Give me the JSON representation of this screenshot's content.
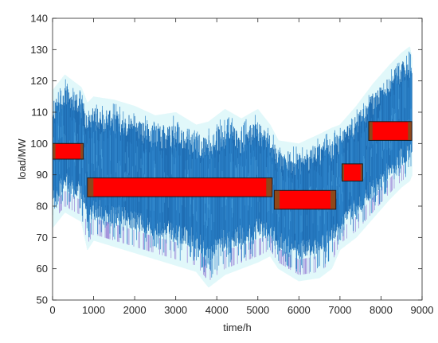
{
  "chart_data": {
    "type": "line",
    "xlabel": "time/h",
    "ylabel": "load/MW",
    "xlim": [
      0,
      9000
    ],
    "ylim": [
      50,
      140
    ],
    "xticks": [
      0,
      1000,
      2000,
      3000,
      4000,
      5000,
      6000,
      7000,
      8000,
      9000
    ],
    "yticks": [
      50,
      60,
      70,
      80,
      90,
      100,
      110,
      120,
      130,
      140
    ],
    "grid": false,
    "legend": "none",
    "series": [
      {
        "kind": "hourly-load-band",
        "x_range": [
          0,
          8760
        ],
        "envelope": [
          {
            "x": 0,
            "min": 75,
            "max": 116
          },
          {
            "x": 300,
            "min": 80,
            "max": 121
          },
          {
            "x": 700,
            "min": 77,
            "max": 117
          },
          {
            "x": 850,
            "min": 68,
            "max": 112
          },
          {
            "x": 1000,
            "min": 71,
            "max": 114
          },
          {
            "x": 1500,
            "min": 69,
            "max": 113
          },
          {
            "x": 2000,
            "min": 67,
            "max": 111
          },
          {
            "x": 2500,
            "min": 65,
            "max": 108
          },
          {
            "x": 3000,
            "min": 63,
            "max": 109
          },
          {
            "x": 3500,
            "min": 61,
            "max": 105
          },
          {
            "x": 3800,
            "min": 56,
            "max": 106
          },
          {
            "x": 4200,
            "min": 60,
            "max": 110
          },
          {
            "x": 4600,
            "min": 62,
            "max": 107
          },
          {
            "x": 5000,
            "min": 64,
            "max": 110
          },
          {
            "x": 5300,
            "min": 66,
            "max": 105
          },
          {
            "x": 5500,
            "min": 62,
            "max": 100
          },
          {
            "x": 6000,
            "min": 58,
            "max": 99
          },
          {
            "x": 6500,
            "min": 59,
            "max": 102
          },
          {
            "x": 6800,
            "min": 62,
            "max": 104
          },
          {
            "x": 7000,
            "min": 68,
            "max": 105
          },
          {
            "x": 7400,
            "min": 72,
            "max": 111
          },
          {
            "x": 7800,
            "min": 78,
            "max": 118
          },
          {
            "x": 8200,
            "min": 84,
            "max": 124
          },
          {
            "x": 8500,
            "min": 88,
            "max": 128
          },
          {
            "x": 8700,
            "min": 90,
            "max": 130
          },
          {
            "x": 8760,
            "min": 92,
            "max": 126
          }
        ],
        "colors": {
          "dark": "#1f6db3",
          "mid": "#2a80c7",
          "light": "#4aa0dd",
          "halo": "#c8f3f6",
          "edge": "#7d54c8"
        }
      }
    ],
    "segments": [
      {
        "x_start": 0,
        "x_end": 750,
        "y_low": 95,
        "y_high": 100
      },
      {
        "x_start": 850,
        "x_end": 5350,
        "y_low": 83,
        "y_high": 89
      },
      {
        "x_start": 5400,
        "x_end": 6900,
        "y_low": 79,
        "y_high": 85
      },
      {
        "x_start": 7050,
        "x_end": 7550,
        "y_low": 88,
        "y_high": 93.5
      },
      {
        "x_start": 7700,
        "x_end": 8750,
        "y_low": 101,
        "y_high": 107
      }
    ],
    "colors": {
      "segment_fill": "#ff0000",
      "segment_edge": "#1a1a1a",
      "segment_overlap": "#7a5520",
      "axis": "#262626"
    }
  }
}
